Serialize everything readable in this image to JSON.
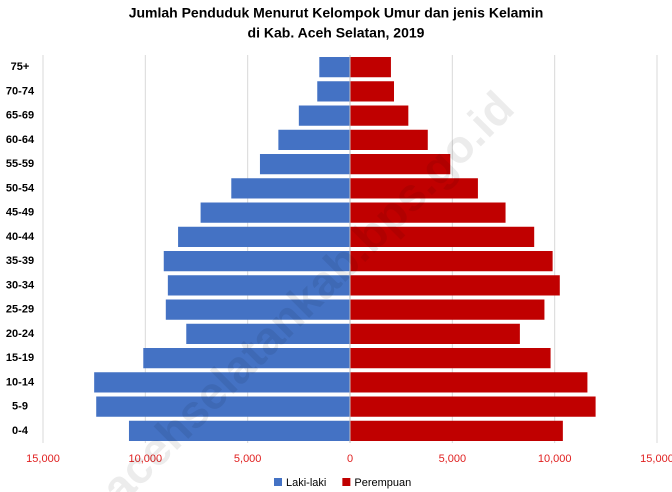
{
  "chart_data": {
    "type": "pyramid",
    "title": [
      "Jumlah Penduduk Menurut Kelompok Umur dan jenis Kelamin",
      "di Kab. Aceh Selatan, 2019"
    ],
    "categories": [
      "75+",
      "70-74",
      "65-69",
      "60-64",
      "55-59",
      "50-54",
      "45-49",
      "40-44",
      "35-39",
      "30-34",
      "25-29",
      "20-24",
      "15-19",
      "10-14",
      "5-9",
      "0-4"
    ],
    "series": [
      {
        "name": "Laki-laki",
        "color": "#4472c4",
        "values": [
          -1500,
          -1600,
          -2500,
          -3500,
          -4400,
          -5800,
          -7300,
          -8400,
          -9100,
          -8900,
          -9000,
          -8000,
          -10100,
          -12500,
          -12400,
          -10800
        ]
      },
      {
        "name": "Perempuan",
        "color": "#c00000",
        "values": [
          2000,
          2150,
          2850,
          3800,
          4900,
          6250,
          7600,
          9000,
          9900,
          10250,
          9500,
          8300,
          9800,
          11600,
          12000,
          10400
        ]
      }
    ],
    "xlim": [
      -15000,
      15000
    ],
    "xticks": [
      {
        "value": -15000,
        "label": "15,000"
      },
      {
        "value": -10000,
        "label": "10,000"
      },
      {
        "value": -5000,
        "label": "5,000"
      },
      0,
      {
        "value": 5000,
        "label": "5,000"
      },
      {
        "value": 10000,
        "label": "10,000"
      },
      {
        "value": 15000,
        "label": "15,000"
      }
    ],
    "grid": true,
    "legend": "bottom",
    "watermark": "acehselatankab.bps.go.id"
  }
}
